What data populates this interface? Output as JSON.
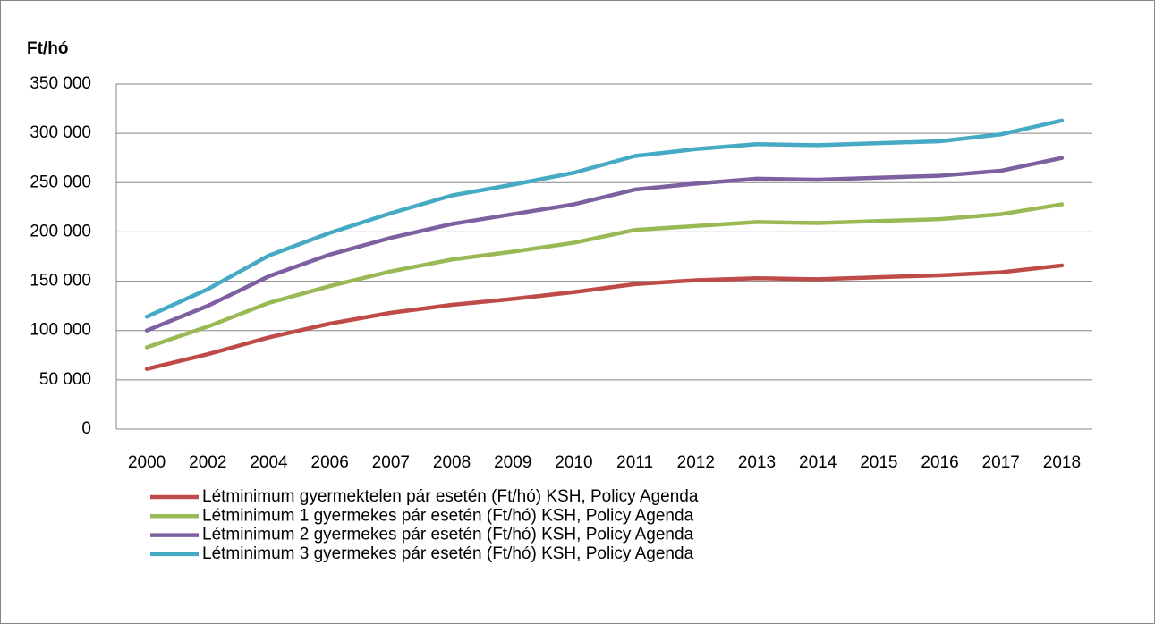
{
  "chart_data": {
    "type": "line",
    "ylabel": "Ft/hó",
    "categories": [
      "2000",
      "2002",
      "2004",
      "2006",
      "2007",
      "2008",
      "2009",
      "2010",
      "2011",
      "2012",
      "2013",
      "2014",
      "2015",
      "2016",
      "2017",
      "2018"
    ],
    "series": [
      {
        "name": "Létminimum gyermektelen pár esetén (Ft/hó) KSH, Policy Agenda",
        "color": "#be4b48",
        "values": [
          61000,
          76000,
          93000,
          107000,
          118000,
          126000,
          132000,
          139000,
          147000,
          151000,
          153000,
          152000,
          154000,
          156000,
          159000,
          166000
        ]
      },
      {
        "name": "Létminimum 1 gyermekes pár esetén (Ft/hó) KSH, Policy Agenda",
        "color": "#98b954",
        "values": [
          83000,
          104000,
          128000,
          145000,
          160000,
          172000,
          180000,
          189000,
          202000,
          206000,
          210000,
          209000,
          211000,
          213000,
          218000,
          228000
        ]
      },
      {
        "name": "Létminimum 2 gyermekes pár esetén (Ft/hó) KSH, Policy Agenda",
        "color": "#7d60a0",
        "values": [
          100000,
          125000,
          155000,
          177000,
          194000,
          208000,
          218000,
          228000,
          243000,
          249000,
          254000,
          253000,
          255000,
          257000,
          262000,
          275000
        ]
      },
      {
        "name": "Létminimum 3 gyermekes pár esetén (Ft/hó) KSH, Policy Agenda",
        "color": "#46aac5",
        "values": [
          114000,
          142000,
          176000,
          199000,
          219000,
          237000,
          248000,
          260000,
          277000,
          284000,
          289000,
          288000,
          290000,
          292000,
          299000,
          313000
        ]
      }
    ],
    "ylim": [
      0,
      350000
    ],
    "yticks": [
      0,
      {
        "value": 50000,
        "label": "50 000"
      },
      {
        "value": 100000,
        "label": "100 000"
      },
      {
        "value": 150000,
        "label": "150 000"
      },
      {
        "value": 200000,
        "label": "200 000"
      },
      {
        "value": 250000,
        "label": "250 000"
      },
      {
        "value": 300000,
        "label": "300 000"
      },
      {
        "value": 350000,
        "label": "350 000"
      }
    ],
    "grid": true,
    "legend": "bottom"
  }
}
